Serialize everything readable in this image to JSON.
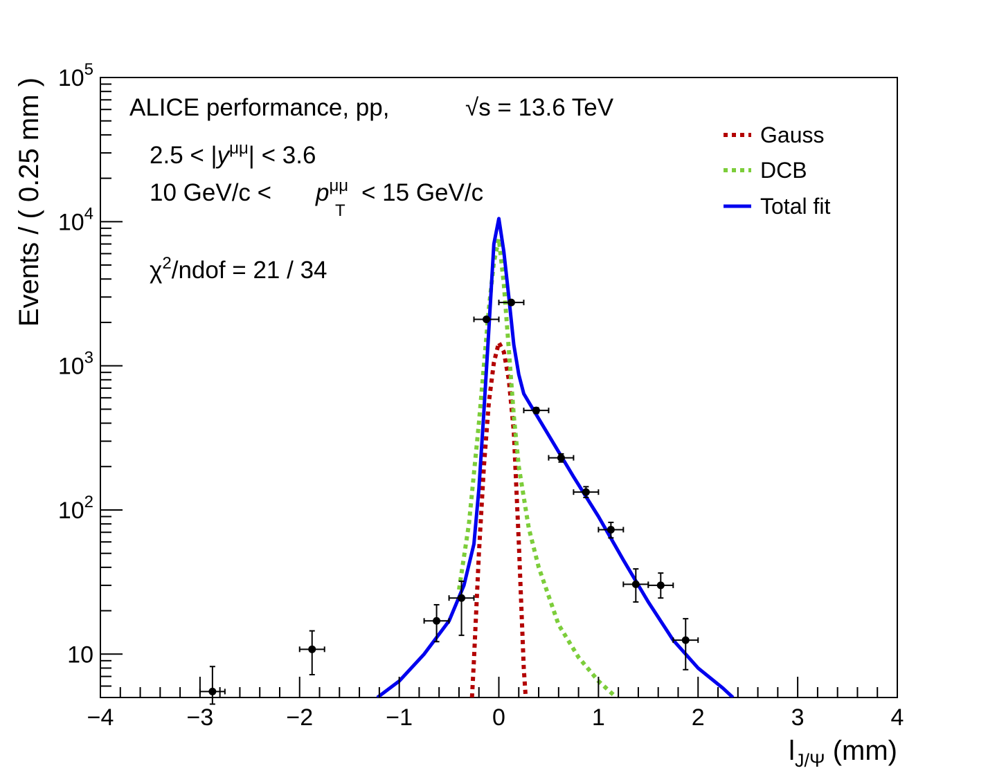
{
  "chart_data": {
    "type": "scatter",
    "title": "",
    "xlabel": "l",
    "xlabel_sub": "J/Ψ",
    "xlabel_unit": " (mm)",
    "ylabel": "Events / ( 0.25 mm )",
    "xlim": [
      -4,
      4
    ],
    "ylim": [
      5,
      100000
    ],
    "yscale": "log",
    "x_ticks": [
      "−4",
      "−3",
      "−2",
      "−1",
      "0",
      "1",
      "2",
      "3",
      "4"
    ],
    "y_ticks": [
      {
        "value": 10,
        "base": "10",
        "exp": ""
      },
      {
        "value": 100,
        "base": "10",
        "exp": "2"
      },
      {
        "value": 1000,
        "base": "10",
        "exp": "3"
      },
      {
        "value": 10000,
        "base": "10",
        "exp": "4"
      },
      {
        "value": 100000,
        "base": "10",
        "exp": "5"
      }
    ],
    "annotations": {
      "line1": "ALICE performance, pp,",
      "sqrt_s": "√s = 13.6 TeV",
      "rap_pre": "2.5 < |",
      "rap_var": "y",
      "rap_sup": "μμ",
      "rap_post": "| < 3.6",
      "pt_pre": "10 GeV/c <",
      "pt_var": "p",
      "pt_sup": "μμ",
      "pt_sub": "T",
      "pt_post": "< 15 GeV/c",
      "chi_pre": "χ",
      "chi_sup": "2",
      "chi_post": "/ndof = 21 / 34"
    },
    "legend_position": "top-right",
    "legend": [
      {
        "label": "Gauss",
        "color": "#b30000",
        "style": "dotted"
      },
      {
        "label": "DCB",
        "color": "#7ccd3a",
        "style": "dotted"
      },
      {
        "label": "Total fit",
        "color": "#0000ee",
        "style": "solid"
      }
    ],
    "data_points": [
      {
        "x": -2.875,
        "y": 5.5,
        "yerr_low": 1.0,
        "yerr_high": 2.7
      },
      {
        "x": -1.875,
        "y": 10.8,
        "yerr_low": 3.6,
        "yerr_high": 3.7
      },
      {
        "x": -0.625,
        "y": 17.0,
        "yerr_low": 4.8,
        "yerr_high": 5.0
      },
      {
        "x": -0.375,
        "y": 24.5,
        "yerr_low": 11.0,
        "yerr_high": 7.5
      },
      {
        "x": -0.125,
        "y": 2100,
        "yerr_low": 46,
        "yerr_high": 46
      },
      {
        "x": 0.125,
        "y": 2750,
        "yerr_low": 52,
        "yerr_high": 52
      },
      {
        "x": 0.375,
        "y": 490,
        "yerr_low": 22,
        "yerr_high": 22
      },
      {
        "x": 0.625,
        "y": 230,
        "yerr_low": 15,
        "yerr_high": 15
      },
      {
        "x": 0.875,
        "y": 133,
        "yerr_low": 11,
        "yerr_high": 12
      },
      {
        "x": 1.125,
        "y": 73,
        "yerr_low": 9,
        "yerr_high": 9
      },
      {
        "x": 1.375,
        "y": 30.5,
        "yerr_low": 7.5,
        "yerr_high": 8.5
      },
      {
        "x": 1.625,
        "y": 30,
        "yerr_low": 5.5,
        "yerr_high": 6.5
      },
      {
        "x": 1.875,
        "y": 12.5,
        "yerr_low": 4.7,
        "yerr_high": 5.1
      }
    ],
    "x_halfwidth": 0.125,
    "series": [
      {
        "name": "Gauss",
        "color": "#b30000",
        "style": "dotted",
        "x": [
          -0.27,
          -0.25,
          -0.2,
          -0.15,
          -0.1,
          -0.05,
          0.0,
          0.05,
          0.1,
          0.15,
          0.2,
          0.25,
          0.27
        ],
        "y": [
          5,
          9,
          50,
          200,
          560,
          1050,
          1450,
          1250,
          800,
          350,
          60,
          8,
          5
        ]
      },
      {
        "name": "DCB",
        "color": "#7ccd3a",
        "style": "dotted",
        "x": [
          -0.4,
          -0.3,
          -0.2,
          -0.1,
          -0.05,
          0.0,
          0.05,
          0.1,
          0.15,
          0.2,
          0.3,
          0.4,
          0.6,
          0.8,
          1.0,
          1.18
        ],
        "y": [
          28,
          80,
          400,
          2500,
          5200,
          7600,
          3700,
          1300,
          450,
          200,
          75,
          40,
          16,
          9.5,
          6.5,
          5
        ]
      },
      {
        "name": "Total fit",
        "color": "#0000ee",
        "style": "solid",
        "x": [
          -1.22,
          -1.0,
          -0.75,
          -0.5,
          -0.35,
          -0.25,
          -0.2,
          -0.15,
          -0.1,
          -0.05,
          0.0,
          0.05,
          0.1,
          0.15,
          0.2,
          0.25,
          0.3,
          0.5,
          0.75,
          1.0,
          1.25,
          1.5,
          1.75,
          2.0,
          2.25,
          2.35
        ],
        "y": [
          5,
          6.5,
          10,
          17,
          30,
          58,
          140,
          480,
          1800,
          7000,
          10500,
          6200,
          3000,
          1400,
          870,
          640,
          560,
          330,
          170,
          90,
          45,
          23,
          12.5,
          8,
          5.8,
          5
        ]
      }
    ]
  }
}
